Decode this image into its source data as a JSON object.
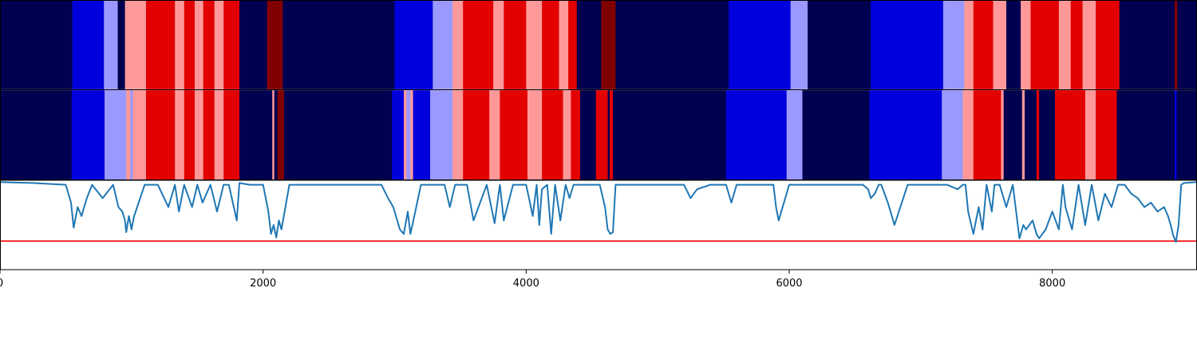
{
  "chart_data": {
    "type": "heatmap",
    "title": "",
    "xlabel": "",
    "ylabel": "",
    "xlim": [
      0,
      9100
    ],
    "x_ticks": [
      {
        "value": 0,
        "label": "0"
      },
      {
        "value": 2000,
        "label": "2000"
      },
      {
        "value": 4000,
        "label": "4000"
      },
      {
        "value": 6000,
        "label": "6000"
      },
      {
        "value": 8000,
        "label": "8000"
      }
    ],
    "palette": {
      "navy": "#000050",
      "blue": "#0000dd",
      "lightblue": "#9999ff",
      "pink": "#ff9999",
      "red": "#e30000",
      "darkred": "#800000"
    },
    "segment_rows": [
      {
        "segments": [
          {
            "start": 0,
            "end": 550,
            "state": "navy"
          },
          {
            "start": 550,
            "end": 790,
            "state": "blue"
          },
          {
            "start": 790,
            "end": 895,
            "state": "lightblue"
          },
          {
            "start": 895,
            "end": 950,
            "state": "navy"
          },
          {
            "start": 950,
            "end": 1110,
            "state": "pink"
          },
          {
            "start": 1110,
            "end": 1330,
            "state": "red"
          },
          {
            "start": 1330,
            "end": 1400,
            "state": "pink"
          },
          {
            "start": 1400,
            "end": 1480,
            "state": "red"
          },
          {
            "start": 1480,
            "end": 1545,
            "state": "pink"
          },
          {
            "start": 1545,
            "end": 1630,
            "state": "red"
          },
          {
            "start": 1630,
            "end": 1700,
            "state": "pink"
          },
          {
            "start": 1700,
            "end": 1820,
            "state": "red"
          },
          {
            "start": 1820,
            "end": 2030,
            "state": "navy"
          },
          {
            "start": 2030,
            "end": 2150,
            "state": "darkred"
          },
          {
            "start": 2150,
            "end": 3000,
            "state": "navy"
          },
          {
            "start": 3000,
            "end": 3290,
            "state": "blue"
          },
          {
            "start": 3290,
            "end": 3440,
            "state": "lightblue"
          },
          {
            "start": 3440,
            "end": 3520,
            "state": "pink"
          },
          {
            "start": 3520,
            "end": 3750,
            "state": "red"
          },
          {
            "start": 3750,
            "end": 3830,
            "state": "pink"
          },
          {
            "start": 3830,
            "end": 4000,
            "state": "red"
          },
          {
            "start": 4000,
            "end": 4120,
            "state": "pink"
          },
          {
            "start": 4120,
            "end": 4250,
            "state": "red"
          },
          {
            "start": 4250,
            "end": 4320,
            "state": "pink"
          },
          {
            "start": 4320,
            "end": 4385,
            "state": "red"
          },
          {
            "start": 4385,
            "end": 4570,
            "state": "navy"
          },
          {
            "start": 4570,
            "end": 4680,
            "state": "darkred"
          },
          {
            "start": 4680,
            "end": 5540,
            "state": "navy"
          },
          {
            "start": 5540,
            "end": 6010,
            "state": "blue"
          },
          {
            "start": 6010,
            "end": 6140,
            "state": "lightblue"
          },
          {
            "start": 6140,
            "end": 6620,
            "state": "navy"
          },
          {
            "start": 6620,
            "end": 7170,
            "state": "blue"
          },
          {
            "start": 7170,
            "end": 7330,
            "state": "lightblue"
          },
          {
            "start": 7330,
            "end": 7400,
            "state": "pink"
          },
          {
            "start": 7400,
            "end": 7550,
            "state": "red"
          },
          {
            "start": 7550,
            "end": 7650,
            "state": "pink"
          },
          {
            "start": 7650,
            "end": 7760,
            "state": "navy"
          },
          {
            "start": 7760,
            "end": 7835,
            "state": "pink"
          },
          {
            "start": 7835,
            "end": 8050,
            "state": "red"
          },
          {
            "start": 8050,
            "end": 8140,
            "state": "pink"
          },
          {
            "start": 8140,
            "end": 8230,
            "state": "red"
          },
          {
            "start": 8230,
            "end": 8330,
            "state": "pink"
          },
          {
            "start": 8330,
            "end": 8510,
            "state": "red"
          },
          {
            "start": 8510,
            "end": 8930,
            "state": "navy"
          },
          {
            "start": 8930,
            "end": 8950,
            "state": "darkred"
          },
          {
            "start": 8950,
            "end": 9100,
            "state": "navy"
          }
        ]
      },
      {
        "segments": [
          {
            "start": 0,
            "end": 545,
            "state": "navy"
          },
          {
            "start": 545,
            "end": 795,
            "state": "blue"
          },
          {
            "start": 795,
            "end": 960,
            "state": "lightblue"
          },
          {
            "start": 960,
            "end": 990,
            "state": "pink"
          },
          {
            "start": 990,
            "end": 1010,
            "state": "lightblue"
          },
          {
            "start": 1010,
            "end": 1110,
            "state": "pink"
          },
          {
            "start": 1110,
            "end": 1330,
            "state": "red"
          },
          {
            "start": 1330,
            "end": 1400,
            "state": "pink"
          },
          {
            "start": 1400,
            "end": 1480,
            "state": "red"
          },
          {
            "start": 1480,
            "end": 1545,
            "state": "pink"
          },
          {
            "start": 1545,
            "end": 1630,
            "state": "red"
          },
          {
            "start": 1630,
            "end": 1700,
            "state": "pink"
          },
          {
            "start": 1700,
            "end": 1820,
            "state": "red"
          },
          {
            "start": 1820,
            "end": 2070,
            "state": "navy"
          },
          {
            "start": 2070,
            "end": 2085,
            "state": "pink"
          },
          {
            "start": 2085,
            "end": 2110,
            "state": "navy"
          },
          {
            "start": 2110,
            "end": 2160,
            "state": "darkred"
          },
          {
            "start": 2160,
            "end": 2980,
            "state": "navy"
          },
          {
            "start": 2980,
            "end": 3070,
            "state": "blue"
          },
          {
            "start": 3070,
            "end": 3090,
            "state": "pink"
          },
          {
            "start": 3090,
            "end": 3120,
            "state": "lightblue"
          },
          {
            "start": 3120,
            "end": 3140,
            "state": "pink"
          },
          {
            "start": 3140,
            "end": 3270,
            "state": "blue"
          },
          {
            "start": 3270,
            "end": 3440,
            "state": "lightblue"
          },
          {
            "start": 3440,
            "end": 3520,
            "state": "pink"
          },
          {
            "start": 3520,
            "end": 3720,
            "state": "red"
          },
          {
            "start": 3720,
            "end": 3800,
            "state": "pink"
          },
          {
            "start": 3800,
            "end": 4010,
            "state": "red"
          },
          {
            "start": 4010,
            "end": 4120,
            "state": "pink"
          },
          {
            "start": 4120,
            "end": 4280,
            "state": "red"
          },
          {
            "start": 4280,
            "end": 4340,
            "state": "pink"
          },
          {
            "start": 4340,
            "end": 4410,
            "state": "red"
          },
          {
            "start": 4410,
            "end": 4530,
            "state": "navy"
          },
          {
            "start": 4530,
            "end": 4620,
            "state": "red"
          },
          {
            "start": 4620,
            "end": 4635,
            "state": "navy"
          },
          {
            "start": 4635,
            "end": 4660,
            "state": "red"
          },
          {
            "start": 4660,
            "end": 5520,
            "state": "navy"
          },
          {
            "start": 5520,
            "end": 5980,
            "state": "blue"
          },
          {
            "start": 5980,
            "end": 6100,
            "state": "lightblue"
          },
          {
            "start": 6100,
            "end": 6610,
            "state": "navy"
          },
          {
            "start": 6610,
            "end": 7160,
            "state": "blue"
          },
          {
            "start": 7160,
            "end": 7320,
            "state": "lightblue"
          },
          {
            "start": 7320,
            "end": 7400,
            "state": "pink"
          },
          {
            "start": 7400,
            "end": 7610,
            "state": "red"
          },
          {
            "start": 7610,
            "end": 7630,
            "state": "pink"
          },
          {
            "start": 7630,
            "end": 7770,
            "state": "navy"
          },
          {
            "start": 7770,
            "end": 7790,
            "state": "pink"
          },
          {
            "start": 7790,
            "end": 7880,
            "state": "navy"
          },
          {
            "start": 7880,
            "end": 7900,
            "state": "red"
          },
          {
            "start": 7900,
            "end": 8020,
            "state": "navy"
          },
          {
            "start": 8020,
            "end": 8250,
            "state": "red"
          },
          {
            "start": 8250,
            "end": 8330,
            "state": "pink"
          },
          {
            "start": 8330,
            "end": 8490,
            "state": "red"
          },
          {
            "start": 8490,
            "end": 8930,
            "state": "navy"
          },
          {
            "start": 8930,
            "end": 8945,
            "state": "blue"
          },
          {
            "start": 8945,
            "end": 9100,
            "state": "navy"
          }
        ]
      }
    ],
    "line_panel": {
      "line_color": "#1f77b4",
      "baseline_y": 0.0,
      "ylim": [
        -1.0,
        0.0
      ],
      "reference_line": {
        "y": -0.68,
        "color": "#ff0000"
      },
      "x": [
        0,
        250,
        500,
        540,
        560,
        590,
        620,
        660,
        700,
        780,
        860,
        900,
        930,
        950,
        960,
        980,
        1000,
        1020,
        1100,
        1200,
        1280,
        1330,
        1360,
        1400,
        1460,
        1500,
        1540,
        1600,
        1650,
        1700,
        1740,
        1800,
        1820,
        1900,
        2000,
        2040,
        2060,
        2080,
        2100,
        2120,
        2140,
        2200,
        2500,
        2900,
        2950,
        2990,
        3020,
        3040,
        3070,
        3100,
        3120,
        3150,
        3200,
        3300,
        3380,
        3420,
        3460,
        3550,
        3600,
        3700,
        3760,
        3800,
        3830,
        3900,
        3960,
        4000,
        4050,
        4080,
        4100,
        4120,
        4160,
        4190,
        4220,
        4260,
        4300,
        4330,
        4360,
        4400,
        4450,
        4500,
        4560,
        4600,
        4620,
        4640,
        4660,
        4680,
        4700,
        4800,
        5100,
        5200,
        5250,
        5300,
        5400,
        5480,
        5520,
        5560,
        5600,
        5700,
        5880,
        5900,
        5920,
        6000,
        6100,
        6300,
        6400,
        6500,
        6560,
        6600,
        6620,
        6650,
        6680,
        6700,
        6750,
        6800,
        6900,
        7000,
        7100,
        7160,
        7200,
        7280,
        7320,
        7340,
        7360,
        7400,
        7440,
        7470,
        7500,
        7540,
        7560,
        7600,
        7650,
        7700,
        7750,
        7780,
        7800,
        7850,
        7880,
        7900,
        7950,
        8000,
        8050,
        8080,
        8100,
        8150,
        8200,
        8250,
        8300,
        8350,
        8400,
        8450,
        8500,
        8550,
        8600,
        8650,
        8700,
        8750,
        8800,
        8850,
        8880,
        8900,
        8920,
        8940,
        8960,
        8980,
        9000,
        9100
      ],
      "y": [
        -0.02,
        -0.03,
        -0.05,
        -0.25,
        -0.53,
        -0.3,
        -0.4,
        -0.2,
        -0.05,
        -0.2,
        -0.05,
        -0.3,
        -0.35,
        -0.45,
        -0.58,
        -0.4,
        -0.55,
        -0.4,
        -0.05,
        -0.05,
        -0.3,
        -0.05,
        -0.35,
        -0.05,
        -0.3,
        -0.05,
        -0.25,
        -0.05,
        -0.35,
        -0.05,
        -0.05,
        -0.45,
        -0.03,
        -0.05,
        -0.05,
        -0.35,
        -0.6,
        -0.5,
        -0.64,
        -0.45,
        -0.55,
        -0.05,
        -0.05,
        -0.05,
        -0.2,
        -0.3,
        -0.45,
        -0.55,
        -0.6,
        -0.35,
        -0.6,
        -0.4,
        -0.05,
        -0.05,
        -0.05,
        -0.3,
        -0.05,
        -0.05,
        -0.45,
        -0.05,
        -0.48,
        -0.05,
        -0.45,
        -0.05,
        -0.05,
        -0.05,
        -0.4,
        -0.05,
        -0.5,
        -0.1,
        -0.05,
        -0.6,
        -0.05,
        -0.45,
        -0.05,
        -0.2,
        -0.05,
        -0.05,
        -0.05,
        -0.05,
        -0.05,
        -0.3,
        -0.55,
        -0.6,
        -0.58,
        -0.05,
        -0.05,
        -0.05,
        -0.05,
        -0.05,
        -0.2,
        -0.1,
        -0.05,
        -0.05,
        -0.05,
        -0.25,
        -0.05,
        -0.05,
        -0.05,
        -0.3,
        -0.45,
        -0.05,
        -0.05,
        -0.05,
        -0.05,
        -0.05,
        -0.05,
        -0.1,
        -0.2,
        -0.15,
        -0.05,
        -0.05,
        -0.25,
        -0.5,
        -0.05,
        -0.05,
        -0.05,
        -0.05,
        -0.05,
        -0.1,
        -0.05,
        -0.05,
        -0.35,
        -0.6,
        -0.3,
        -0.55,
        -0.05,
        -0.35,
        -0.05,
        -0.05,
        -0.3,
        -0.05,
        -0.65,
        -0.5,
        -0.55,
        -0.45,
        -0.6,
        -0.65,
        -0.55,
        -0.35,
        -0.55,
        -0.05,
        -0.3,
        -0.55,
        -0.05,
        -0.5,
        -0.05,
        -0.45,
        -0.15,
        -0.3,
        -0.05,
        -0.05,
        -0.15,
        -0.2,
        -0.3,
        -0.25,
        -0.35,
        -0.3,
        -0.4,
        -0.5,
        -0.62,
        -0.69,
        -0.5,
        -0.05,
        -0.03,
        -0.02
      ]
    }
  }
}
